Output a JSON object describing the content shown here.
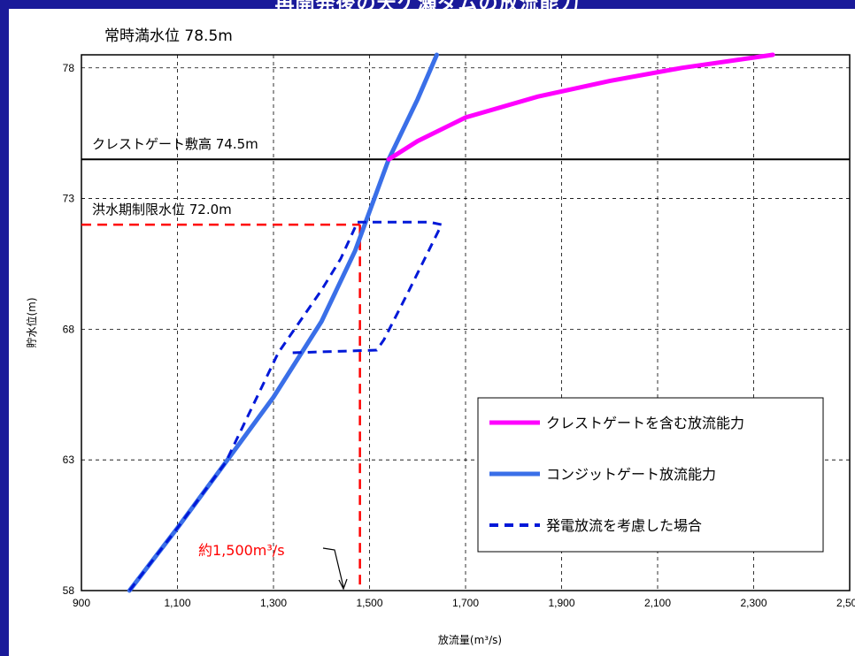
{
  "banner": {
    "title": "再開発後の天ケ瀬ダムの放流能力"
  },
  "chart_data": {
    "type": "line",
    "xlabel": "放流量(m³/s)",
    "ylabel": "貯水位(m)",
    "xlim": [
      900,
      2500
    ],
    "ylim": [
      58,
      78.5
    ],
    "x_ticks": [
      900,
      1100,
      1300,
      1500,
      1700,
      1900,
      2100,
      2300,
      2500
    ],
    "x_tick_labels": [
      "900",
      "1,100",
      "1,300",
      "1,500",
      "1,700",
      "1,900",
      "2,100",
      "2,300",
      "2,500"
    ],
    "y_ticks": [
      58,
      63,
      68,
      73,
      78
    ],
    "y_tick_labels": [
      "58",
      "63",
      "68",
      "73",
      "78"
    ],
    "grid": true,
    "legend_position": "bottom-right",
    "series": [
      {
        "name": "クレストゲートを含む放流能力",
        "color": "#ff00ff",
        "style": "solid",
        "x": [
          1540,
          1600,
          1700,
          1850,
          2000,
          2150,
          2340
        ],
        "y": [
          74.5,
          75.2,
          76.1,
          76.9,
          77.5,
          78.0,
          78.5
        ]
      },
      {
        "name": "コンジットゲート放流能力",
        "color": "#3a6fe8",
        "style": "solid",
        "x": [
          1000,
          1100,
          1200,
          1300,
          1400,
          1470,
          1540,
          1600,
          1640
        ],
        "y": [
          58.0,
          60.4,
          62.9,
          65.4,
          68.3,
          71.0,
          74.5,
          76.8,
          78.5
        ]
      },
      {
        "name": "発電放流を考慮した場合",
        "color": "#0018d8",
        "style": "dashed",
        "x": [
          1000,
          1100,
          1200,
          1310,
          1400,
          1440,
          1470
        ],
        "y": [
          58.0,
          60.4,
          62.9,
          67.1,
          69.5,
          70.7,
          71.9
        ],
        "x2": [
          1340,
          1515,
          1530,
          1580,
          1650,
          1625,
          1470
        ],
        "y2": [
          67.1,
          67.2,
          67.6,
          69.4,
          72.0,
          72.1,
          72.1
        ]
      }
    ],
    "reference_lines": [
      {
        "label": "常時満水位 78.5m",
        "y": 78.5
      },
      {
        "label": "クレストゲート敷高 74.5m",
        "y": 74.5,
        "color": "#000000"
      },
      {
        "label": "洪水期制限水位 72.0m",
        "y": 72.0,
        "color": "#ff0000",
        "style": "dashed"
      }
    ],
    "annotations": [
      {
        "label": "約1,500m³/s",
        "x": 1480,
        "color": "#ff0000"
      }
    ]
  }
}
